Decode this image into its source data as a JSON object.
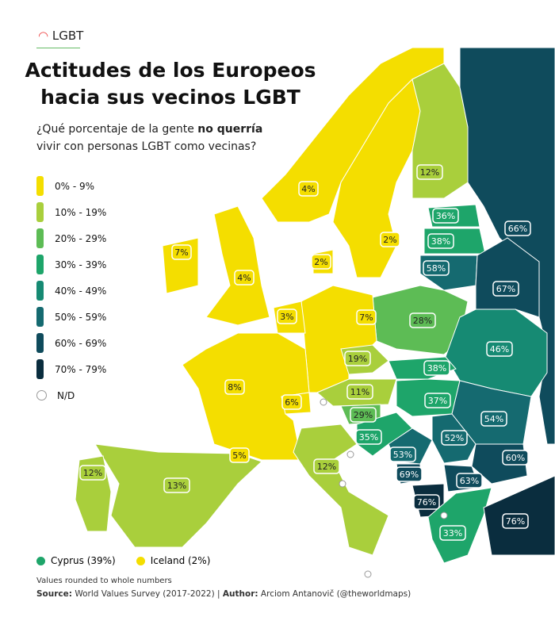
{
  "header": {
    "logo": "LGBT",
    "title": [
      "Actitudes de los Europeos",
      "hacia sus vecinos LGBT"
    ],
    "subtitle": {
      "start": "¿Qué porcentaje de la gente ",
      "bold": "no querría",
      "end": "vivir con personas LGBT como vecinas?"
    }
  },
  "legend": {
    "items": [
      {
        "label": "0% - 9%",
        "color": "#f4de00"
      },
      {
        "label": "10% - 19%",
        "color": "#a9cf3c"
      },
      {
        "label": "20% - 29%",
        "color": "#5dbc55"
      },
      {
        "label": "30% - 39%",
        "color": "#1ea56a"
      },
      {
        "label": "40% - 49%",
        "color": "#168a73"
      },
      {
        "label": "50% - 59%",
        "color": "#156a70"
      },
      {
        "label": "60% - 69%",
        "color": "#0f4b5c"
      },
      {
        "label": "70% - 79%",
        "color": "#0a2d3e"
      }
    ],
    "nd": "N/D"
  },
  "regions": [
    {
      "label": "4%",
      "color": "#f4de00"
    },
    {
      "label": "2%",
      "color": "#f4de00"
    },
    {
      "label": "12%",
      "color": "#a9cf3c"
    },
    {
      "label": "66%",
      "color": "#0f4b5c"
    },
    {
      "label": "36%",
      "color": "#1ea56a"
    },
    {
      "label": "38%",
      "color": "#1ea56a"
    },
    {
      "label": "58%",
      "color": "#156a70"
    },
    {
      "label": "67%",
      "color": "#0f4b5c"
    },
    {
      "label": "28%",
      "color": "#5dbc55"
    },
    {
      "label": "46%",
      "color": "#168a73"
    },
    {
      "label": "7%",
      "color": "#f4de00"
    },
    {
      "label": "2%",
      "color": "#f4de00"
    },
    {
      "label": "4%",
      "color": "#f4de00"
    },
    {
      "label": "7%",
      "color": "#f4de00"
    },
    {
      "label": "3%",
      "color": "#f4de00"
    },
    {
      "label": "8%",
      "color": "#f4de00"
    },
    {
      "label": "6%",
      "color": "#f4de00"
    },
    {
      "label": "19%",
      "color": "#a9cf3c"
    },
    {
      "label": "38%",
      "color": "#1ea56a"
    },
    {
      "label": "11%",
      "color": "#a9cf3c"
    },
    {
      "label": "37%",
      "color": "#1ea56a"
    },
    {
      "label": "29%",
      "color": "#5dbc55"
    },
    {
      "label": "35%",
      "color": "#1ea56a"
    },
    {
      "label": "54%",
      "color": "#156a70"
    },
    {
      "label": "52%",
      "color": "#156a70"
    },
    {
      "label": "53%",
      "color": "#156a70"
    },
    {
      "label": "69%",
      "color": "#0f4b5c"
    },
    {
      "label": "60%",
      "color": "#0f4b5c"
    },
    {
      "label": "63%",
      "color": "#0f4b5c"
    },
    {
      "label": "76%",
      "color": "#0a2d3e"
    },
    {
      "label": "33%",
      "color": "#1ea56a"
    },
    {
      "label": "76%",
      "color": "#0a2d3e"
    },
    {
      "label": "12%",
      "color": "#a9cf3c"
    },
    {
      "label": "13%",
      "color": "#a9cf3c"
    },
    {
      "label": "12%",
      "color": "#a9cf3c"
    },
    {
      "label": "5%",
      "color": "#f4de00"
    }
  ],
  "insets": [
    {
      "label": "Cyprus (39%)",
      "color": "#1ea56a"
    },
    {
      "label": "Iceland (2%)",
      "color": "#f4de00"
    }
  ],
  "footer": {
    "note": "Values rounded to whole numbers",
    "source_label": "Source:",
    "source": " World Values Survey (2017-2022) | ",
    "author_label": "Author:",
    "author": " Arciom Antanovič (@theworldmaps)"
  }
}
